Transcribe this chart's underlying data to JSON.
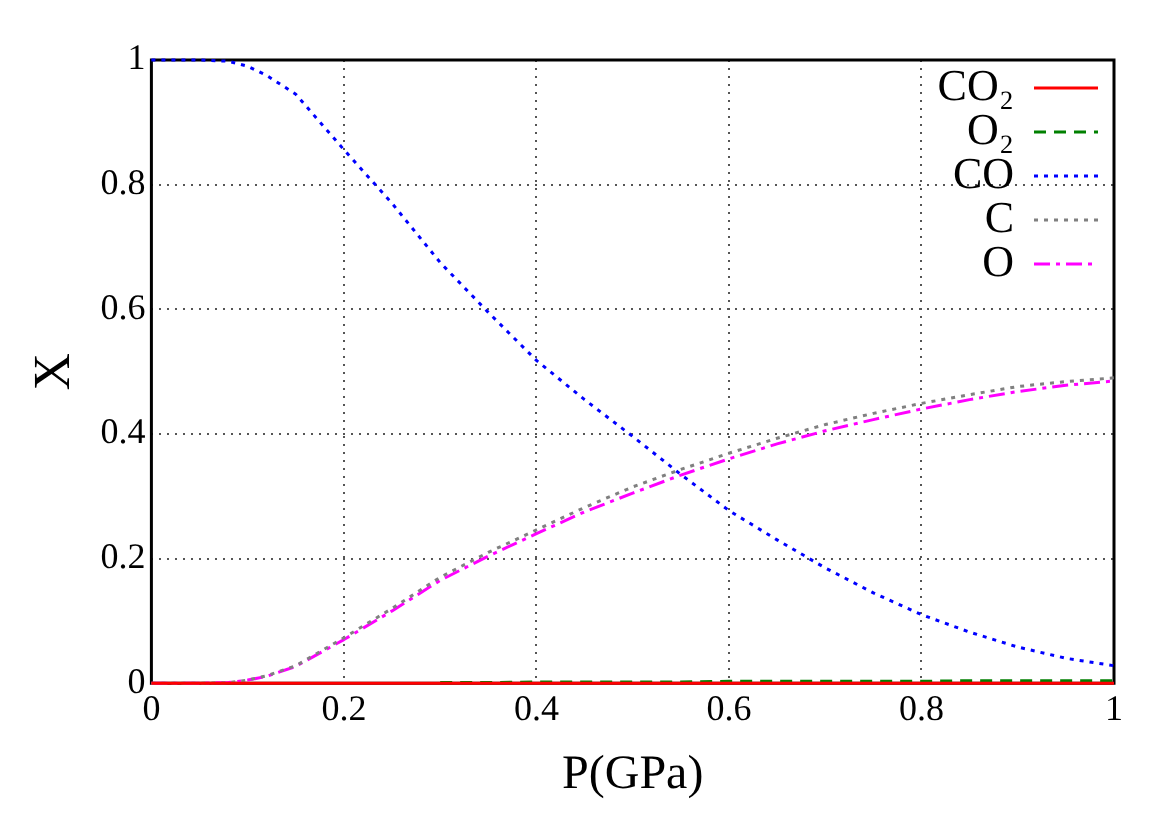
{
  "chart_data": {
    "type": "line",
    "xlabel": "P(GPa)",
    "ylabel": "X",
    "x": [
      0,
      0.05,
      0.08,
      0.1,
      0.12,
      0.15,
      0.2,
      0.25,
      0.3,
      0.35,
      0.4,
      0.45,
      0.5,
      0.55,
      0.6,
      0.65,
      0.7,
      0.75,
      0.8,
      0.85,
      0.9,
      0.95,
      1
    ],
    "xlim": [
      0,
      1
    ],
    "xticks": [
      0,
      0.2,
      0.4,
      0.6,
      0.8,
      1
    ],
    "ylim": [
      0,
      1
    ],
    "yticks": [
      0,
      0.2,
      0.4,
      0.6,
      0.8,
      1
    ],
    "grid": true,
    "legend": "top right",
    "marker": "none",
    "series": [
      {
        "name": "CO₂",
        "color": "#ff0000",
        "line_style": "solid",
        "values": [
          0,
          0,
          0,
          0,
          0,
          0,
          0,
          0,
          0,
          0,
          0,
          0,
          0,
          0,
          0,
          0,
          0,
          0,
          0,
          0,
          0,
          0,
          0
        ]
      },
      {
        "name": "O₂",
        "color": "#008000",
        "line_style": "dashed",
        "values": [
          null,
          null,
          null,
          null,
          null,
          null,
          null,
          null,
          0.001,
          0.001,
          0.002,
          0.002,
          0.002,
          0.002,
          0.003,
          0.003,
          0.003,
          0.003,
          0.003,
          0.004,
          0.004,
          0.004,
          0.004
        ]
      },
      {
        "name": "CO",
        "color": "#0000ff",
        "line_style": "dotted",
        "values": [
          1,
          1,
          0.998,
          0.99,
          0.975,
          0.945,
          0.856,
          0.77,
          0.675,
          0.595,
          0.518,
          0.455,
          0.396,
          0.335,
          0.277,
          0.23,
          0.185,
          0.145,
          0.11,
          0.082,
          0.058,
          0.04,
          0.028
        ]
      },
      {
        "name": "C",
        "color": "#808080",
        "line_style": "dotted",
        "values": [
          0,
          0,
          0.001,
          0.005,
          0.012,
          0.028,
          0.073,
          0.12,
          0.17,
          0.21,
          0.246,
          0.282,
          0.315,
          0.343,
          0.369,
          0.393,
          0.415,
          0.433,
          0.449,
          0.463,
          0.476,
          0.484,
          0.49
        ]
      },
      {
        "name": "O",
        "color": "#ff00ff",
        "line_style": "dashdot",
        "values": [
          0,
          0,
          0.001,
          0.005,
          0.011,
          0.027,
          0.07,
          0.116,
          0.165,
          0.204,
          0.24,
          0.275,
          0.305,
          0.334,
          0.36,
          0.384,
          0.405,
          0.423,
          0.44,
          0.455,
          0.468,
          0.478,
          0.485
        ]
      }
    ]
  }
}
